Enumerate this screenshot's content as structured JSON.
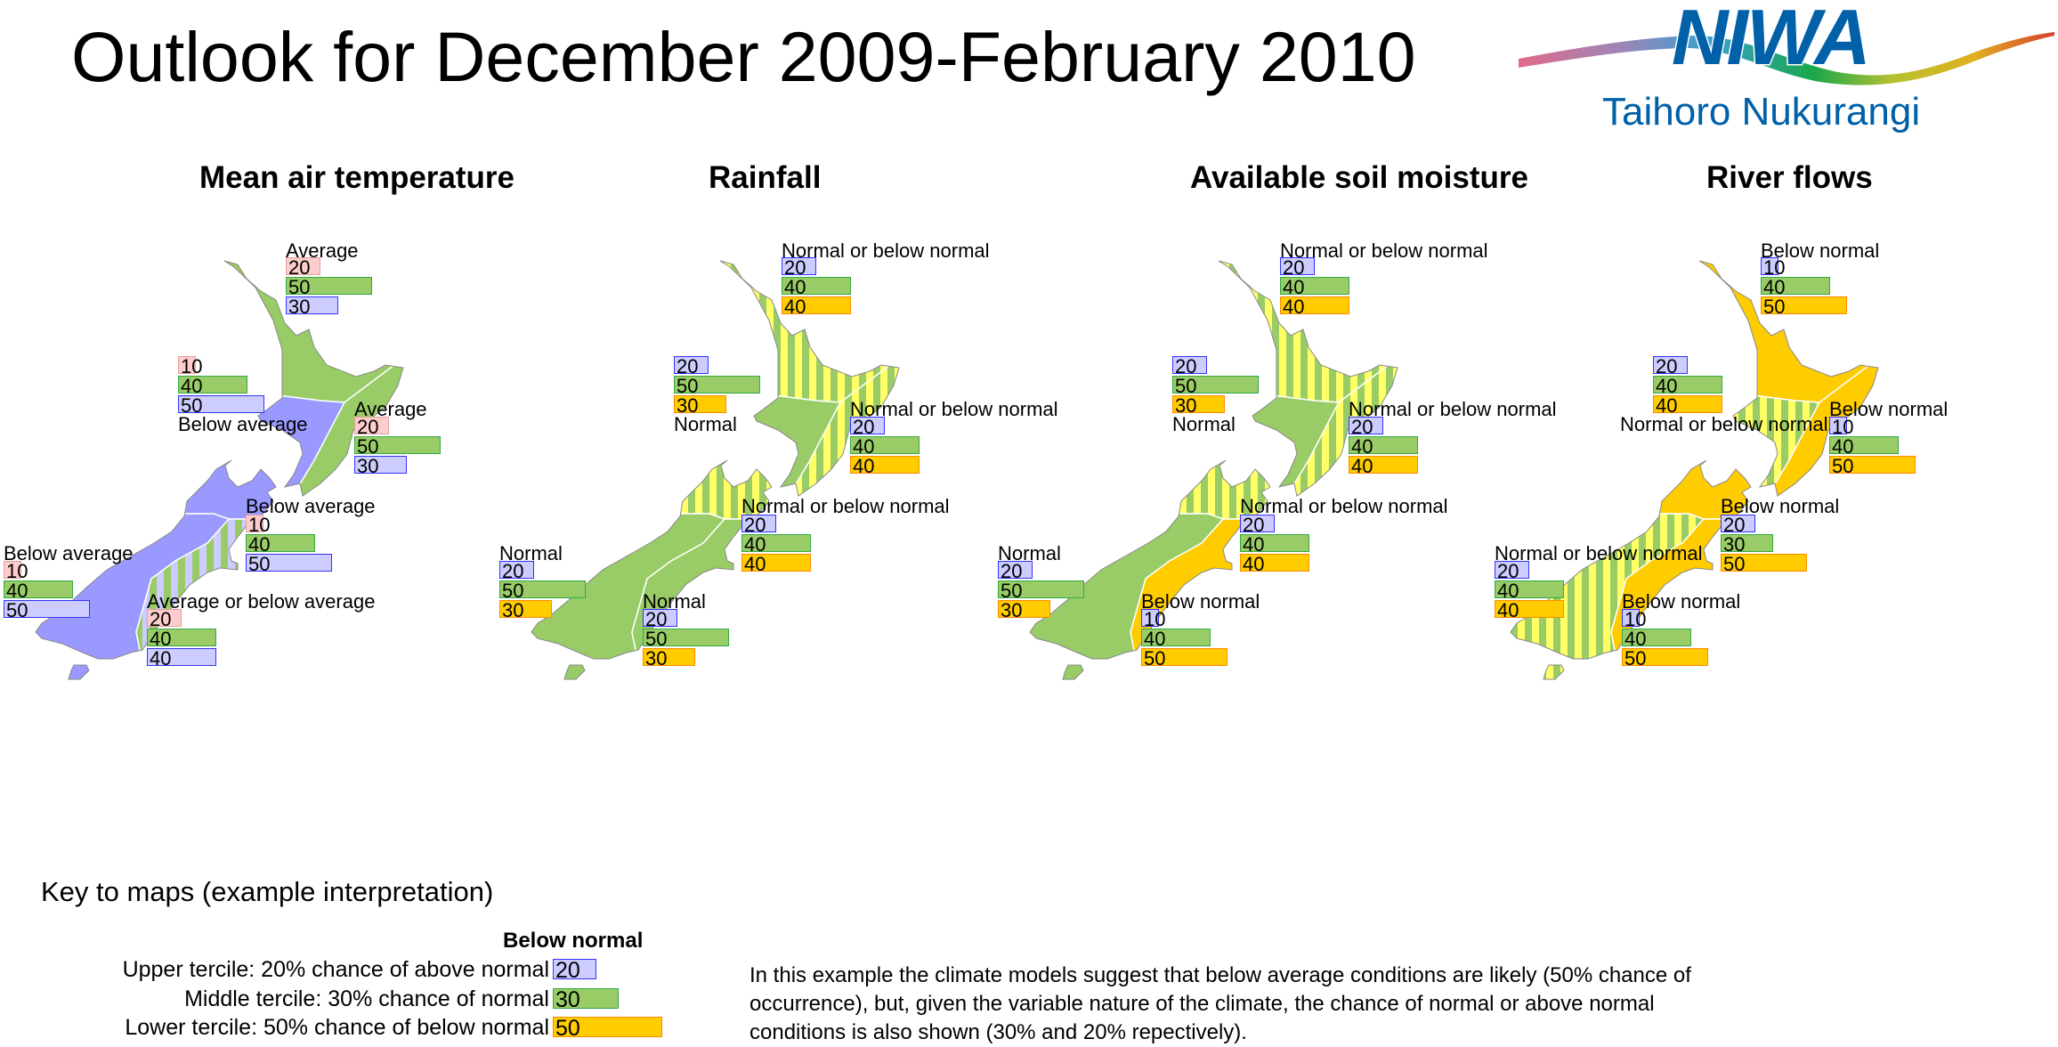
{
  "title": "Outlook for December 2009-February 2010",
  "logo": {
    "name": "NIWA",
    "tagline": "Taihoro Nukurangi",
    "color": "#0060a8"
  },
  "colors": {
    "above_box": "#ffcccc",
    "above_border": "#e0a0a0",
    "normal_box": "#99cc66",
    "normal_border": "#33aa44",
    "blue_box": "#ccccff",
    "blue_border": "#3333ff",
    "orange_box": "#ffcc00",
    "orange_border": "#ff8800",
    "fill_normal": "#99cc66",
    "fill_below_temp": "#9999ff",
    "fill_below": "#ffcc00",
    "stripe_yellow": "#ffff66",
    "stripe_lavender": "#ccccff",
    "outline": "#888888"
  },
  "maps": [
    {
      "title": "Mean air temperature",
      "box_colors": [
        "above",
        "normal",
        "blue"
      ],
      "regions": [
        {
          "label": "Average",
          "values": [
            20,
            50,
            30
          ],
          "fill": "normal"
        },
        {
          "label": "Below average",
          "values": [
            10,
            40,
            50
          ],
          "fill": "below_temp"
        },
        {
          "label": "Average",
          "values": [
            20,
            50,
            30
          ],
          "fill": "normal"
        },
        {
          "label": "Below average",
          "values": [
            10,
            40,
            50
          ],
          "fill": "below_temp"
        },
        {
          "label": "Below average",
          "values": [
            10,
            40,
            50
          ],
          "fill": "below_temp"
        },
        {
          "label": "Average or below average",
          "values": [
            20,
            40,
            40
          ],
          "fill": "stripe_lavender"
        }
      ]
    },
    {
      "title": "Rainfall",
      "box_colors": [
        "blue",
        "normal",
        "orange"
      ],
      "regions": [
        {
          "label": "Normal or below normal",
          "values": [
            20,
            40,
            40
          ],
          "fill": "stripe_yellow"
        },
        {
          "label": "Normal",
          "values": [
            20,
            50,
            30
          ],
          "fill": "normal"
        },
        {
          "label": "Normal or below normal",
          "values": [
            20,
            40,
            40
          ],
          "fill": "stripe_yellow"
        },
        {
          "label": "Normal or below normal",
          "values": [
            20,
            40,
            40
          ],
          "fill": "stripe_yellow"
        },
        {
          "label": "Normal",
          "values": [
            20,
            50,
            30
          ],
          "fill": "normal"
        },
        {
          "label": "Normal",
          "values": [
            20,
            50,
            30
          ],
          "fill": "normal"
        }
      ]
    },
    {
      "title": "Available soil moisture",
      "box_colors": [
        "blue",
        "normal",
        "orange"
      ],
      "regions": [
        {
          "label": "Normal or below normal",
          "values": [
            20,
            40,
            40
          ],
          "fill": "stripe_yellow"
        },
        {
          "label": "Normal",
          "values": [
            20,
            50,
            30
          ],
          "fill": "normal"
        },
        {
          "label": "Normal or below normal",
          "values": [
            20,
            40,
            40
          ],
          "fill": "stripe_yellow"
        },
        {
          "label": "Normal or below normal",
          "values": [
            20,
            40,
            40
          ],
          "fill": "stripe_yellow"
        },
        {
          "label": "Normal",
          "values": [
            20,
            50,
            30
          ],
          "fill": "normal"
        },
        {
          "label": "Below normal",
          "values": [
            10,
            40,
            50
          ],
          "fill": "below"
        }
      ]
    },
    {
      "title": "River flows",
      "box_colors": [
        "blue",
        "normal",
        "orange"
      ],
      "regions": [
        {
          "label": "Below normal",
          "values": [
            10,
            40,
            50
          ],
          "fill": "below"
        },
        {
          "label": "Normal or below normal",
          "values": [
            20,
            40,
            40
          ],
          "fill": "stripe_yellow"
        },
        {
          "label": "Below normal",
          "values": [
            10,
            40,
            50
          ],
          "fill": "below"
        },
        {
          "label": "Below normal",
          "values": [
            20,
            30,
            50
          ],
          "fill": "below"
        },
        {
          "label": "Normal or below normal",
          "values": [
            20,
            40,
            40
          ],
          "fill": "stripe_yellow"
        },
        {
          "label": "Below normal",
          "values": [
            10,
            40,
            50
          ],
          "fill": "below"
        }
      ]
    }
  ],
  "key": {
    "title": "Key to maps (example interpretation)",
    "heading": "Below normal",
    "rows": [
      {
        "text": "Upper tercile: 20% chance of above normal",
        "value": 20,
        "color": "blue"
      },
      {
        "text": "Middle tercile: 30% chance of normal",
        "value": 30,
        "color": "normal"
      },
      {
        "text": "Lower tercile: 50% chance of below normal",
        "value": 50,
        "color": "orange"
      }
    ],
    "explanation": [
      "In this example the climate models suggest that below average conditions are likely (50% chance of",
      "occurrence), but, given the variable nature of the climate, the chance of normal or above normal",
      "conditions is also shown (30% and 20% repectively)."
    ]
  }
}
